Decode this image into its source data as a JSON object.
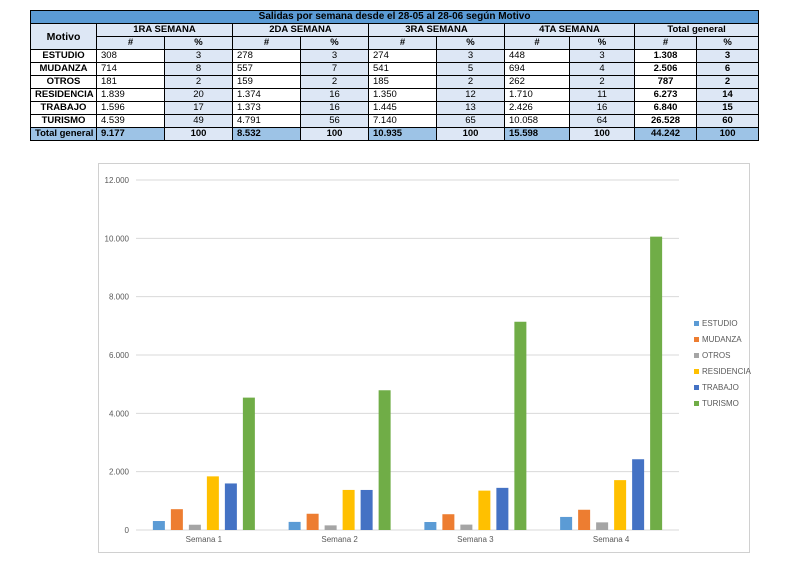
{
  "table": {
    "title": "Salidas por semana desde el 28-05 al 28-06 según Motivo",
    "motivo_header": "Motivo",
    "week_headers": [
      "1RA SEMANA",
      "2DA SEMANA",
      "3RA SEMANA",
      "4TA SEMANA",
      "Total general"
    ],
    "sub_headers": [
      "#",
      "%"
    ],
    "rows": [
      {
        "motivo": "ESTUDIO",
        "cells": [
          "308",
          "3",
          "278",
          "3",
          "274",
          "3",
          "448",
          "3",
          "1.308",
          "3"
        ]
      },
      {
        "motivo": "MUDANZA",
        "cells": [
          "714",
          "8",
          "557",
          "7",
          "541",
          "5",
          "694",
          "4",
          "2.506",
          "6"
        ]
      },
      {
        "motivo": "OTROS",
        "cells": [
          "181",
          "2",
          "159",
          "2",
          "185",
          "2",
          "262",
          "2",
          "787",
          "2"
        ]
      },
      {
        "motivo": "RESIDENCIA",
        "cells": [
          "1.839",
          "20",
          "1.374",
          "16",
          "1.350",
          "12",
          "1.710",
          "11",
          "6.273",
          "14"
        ]
      },
      {
        "motivo": "TRABAJO",
        "cells": [
          "1.596",
          "17",
          "1.373",
          "16",
          "1.445",
          "13",
          "2.426",
          "16",
          "6.840",
          "15"
        ]
      },
      {
        "motivo": "TURISMO",
        "cells": [
          "4.539",
          "49",
          "4.791",
          "56",
          "7.140",
          "65",
          "10.058",
          "64",
          "26.528",
          "60"
        ]
      }
    ],
    "total_row": {
      "motivo": "Total general",
      "cells": [
        "9.177",
        "100",
        "8.532",
        "100",
        "10.935",
        "100",
        "15.598",
        "100",
        "44.242",
        "100"
      ]
    }
  },
  "chart_data": {
    "type": "bar",
    "categories": [
      "Semana 1",
      "Semana 2",
      "Semana 3",
      "Semana 4"
    ],
    "series": [
      {
        "name": "ESTUDIO",
        "color": "#5b9bd5",
        "values": [
          308,
          278,
          274,
          448
        ]
      },
      {
        "name": "MUDANZA",
        "color": "#ed7d31",
        "values": [
          714,
          557,
          541,
          694
        ]
      },
      {
        "name": "OTROS",
        "color": "#a5a5a5",
        "values": [
          181,
          159,
          185,
          262
        ]
      },
      {
        "name": "RESIDENCIA",
        "color": "#ffc000",
        "values": [
          1839,
          1374,
          1350,
          1710
        ]
      },
      {
        "name": "TRABAJO",
        "color": "#4472c4",
        "values": [
          1596,
          1373,
          1445,
          2426
        ]
      },
      {
        "name": "TURISMO",
        "color": "#70ad47",
        "values": [
          4539,
          4791,
          7140,
          10058
        ]
      }
    ],
    "ylim": [
      0,
      12000
    ],
    "y_ticks": [
      0,
      2000,
      4000,
      6000,
      8000,
      10000,
      12000
    ],
    "y_tick_labels": [
      "0",
      "2.000",
      "4.000",
      "6.000",
      "8.000",
      "10.000",
      "12.000"
    ],
    "grid": true,
    "legend_position": "right"
  }
}
